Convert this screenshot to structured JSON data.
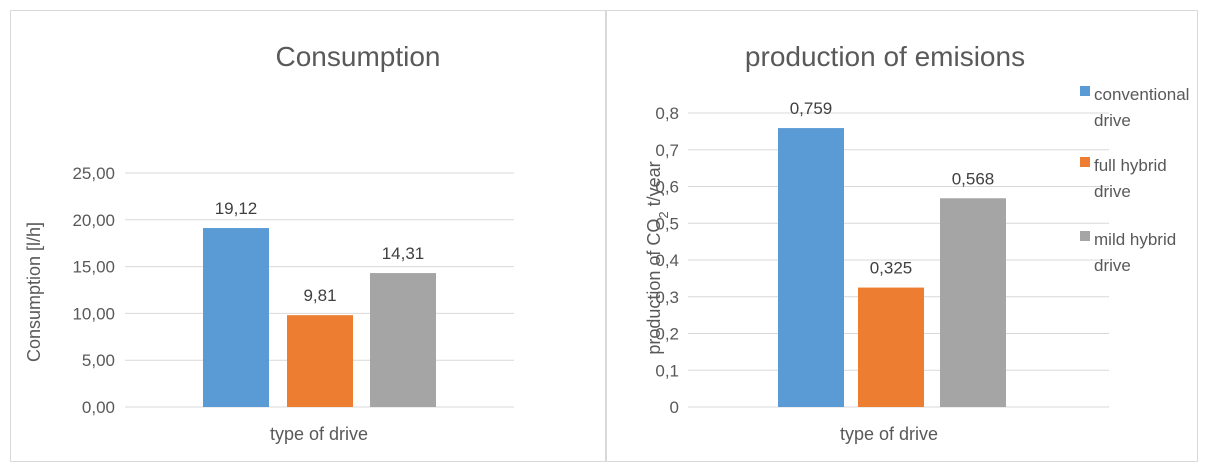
{
  "chart_data": [
    {
      "type": "bar",
      "title": "Consumption",
      "xlabel": "type of drive",
      "ylabel": "Consumption [l/h]",
      "categories": [
        "type of drive"
      ],
      "series": [
        {
          "name": "conventional drive",
          "values": [
            19.12
          ],
          "color": "#5b9bd5",
          "label": "19,12"
        },
        {
          "name": "full hybrid drive",
          "values": [
            9.81
          ],
          "color": "#ed7d31",
          "label": "9,81"
        },
        {
          "name": "mild hybrid drive",
          "values": [
            14.31
          ],
          "color": "#a5a5a5",
          "label": "14,31"
        }
      ],
      "ylim": [
        0,
        25
      ],
      "yticks": [
        0,
        5,
        10,
        15,
        20,
        25
      ],
      "ytick_labels": [
        "0,00",
        "5,00",
        "10,00",
        "15,00",
        "20,00",
        "25,00"
      ],
      "grid": true,
      "legend": "none"
    },
    {
      "type": "bar",
      "title": "production of emisions",
      "xlabel": "type of drive",
      "ylabel_prefix": "production of  CO",
      "ylabel_sub": "2",
      "ylabel_suffix": " t/year",
      "categories": [
        "type of drive"
      ],
      "series": [
        {
          "name": "conventional drive",
          "legend_lines": [
            "conventional",
            "drive"
          ],
          "values": [
            0.759
          ],
          "color": "#5b9bd5",
          "label": "0,759"
        },
        {
          "name": "full hybrid drive",
          "legend_lines": [
            "full hybrid",
            "drive"
          ],
          "values": [
            0.325
          ],
          "color": "#ed7d31",
          "label": "0,325"
        },
        {
          "name": "mild hybrid drive",
          "legend_lines": [
            "mild hybrid",
            "drive"
          ],
          "values": [
            0.568
          ],
          "color": "#a5a5a5",
          "label": "0,568"
        }
      ],
      "ylim": [
        0,
        0.8
      ],
      "yticks": [
        0,
        0.1,
        0.2,
        0.3,
        0.4,
        0.5,
        0.6,
        0.7,
        0.8
      ],
      "ytick_labels": [
        "0",
        "0,1",
        "0,2",
        "0,3",
        "0,4",
        "0,5",
        "0,6",
        "0,7",
        "0,8"
      ],
      "grid": true,
      "legend": "right"
    }
  ]
}
